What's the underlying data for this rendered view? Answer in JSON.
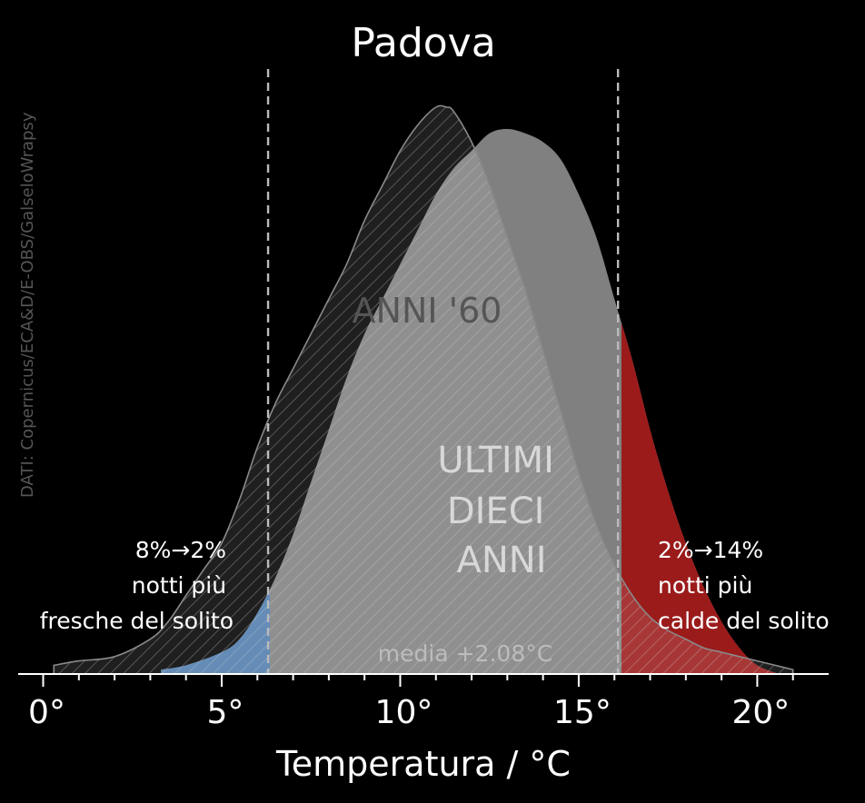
{
  "title": "Padova",
  "credit": "DATI: Copernicus/ECA&D/E-OBS/GalseloWrapsy",
  "colors": {
    "background": "#000000",
    "recent_fill": "#808080",
    "old_hatch": "#cfcfcf",
    "cool_tail": "#4f7dae",
    "warm_tail": "#9b1b1b",
    "threshold_line": "#bbbbbb"
  },
  "labels": {
    "old_series": "ANNI '60",
    "new_series": [
      "ULTIMI",
      "DIECI",
      "ANNI"
    ],
    "mean": "media +2.08°C",
    "cool_note": [
      "8%→2%",
      "notti più",
      "fresche del solito"
    ],
    "warm_note": [
      "2%→14%",
      "notti più",
      "calde del solito"
    ]
  },
  "chart_data": {
    "type": "area",
    "title": "Padova",
    "xlabel": "Temperatura / °C",
    "ylabel": "",
    "xlim": [
      -0.7,
      22
    ],
    "ylim": [
      0,
      1.4
    ],
    "xticks": [
      0,
      5,
      10,
      15,
      20
    ],
    "xtick_labels": [
      "0°",
      "5°",
      "10°",
      "15°",
      "20°"
    ],
    "thresholds": [
      6.3,
      16.1
    ],
    "grid": false,
    "series": [
      {
        "name": "ANNI '60",
        "style": "hatched outline",
        "x": [
          0.3,
          1,
          2,
          3,
          3.5,
          4,
          4.5,
          5,
          5.5,
          6,
          6.5,
          7,
          7.5,
          8,
          8.5,
          9,
          9.5,
          10,
          10.5,
          11,
          11.3,
          11.5,
          12,
          12.5,
          13,
          13.5,
          14,
          14.5,
          15,
          15.5,
          16,
          16.5,
          17,
          17.5,
          18,
          18.5,
          19,
          19.5,
          20,
          20.5,
          21
        ],
        "values": [
          0.02,
          0.03,
          0.04,
          0.08,
          0.12,
          0.18,
          0.24,
          0.3,
          0.4,
          0.52,
          0.62,
          0.7,
          0.78,
          0.86,
          0.94,
          1.04,
          1.12,
          1.2,
          1.26,
          1.3,
          1.3,
          1.29,
          1.22,
          1.12,
          1.0,
          0.88,
          0.74,
          0.6,
          0.46,
          0.34,
          0.25,
          0.18,
          0.13,
          0.1,
          0.08,
          0.06,
          0.05,
          0.04,
          0.03,
          0.02,
          0.01
        ]
      },
      {
        "name": "ULTIMI DIECI ANNI",
        "style": "solid",
        "x": [
          3.3,
          4,
          5,
          5.5,
          6,
          6.5,
          7,
          7.5,
          8,
          8.5,
          9,
          9.5,
          10,
          10.5,
          11,
          11.5,
          12,
          12.5,
          13,
          13.5,
          14,
          14.5,
          15,
          15.5,
          16,
          16.5,
          17,
          17.5,
          18,
          18.5,
          19,
          19.5,
          20,
          20.6
        ],
        "values": [
          0.01,
          0.02,
          0.05,
          0.08,
          0.14,
          0.22,
          0.32,
          0.44,
          0.56,
          0.68,
          0.78,
          0.86,
          0.94,
          1.02,
          1.1,
          1.16,
          1.2,
          1.24,
          1.25,
          1.24,
          1.22,
          1.18,
          1.1,
          1.0,
          0.86,
          0.72,
          0.56,
          0.42,
          0.3,
          0.2,
          0.12,
          0.06,
          0.02,
          0.0
        ]
      }
    ]
  }
}
